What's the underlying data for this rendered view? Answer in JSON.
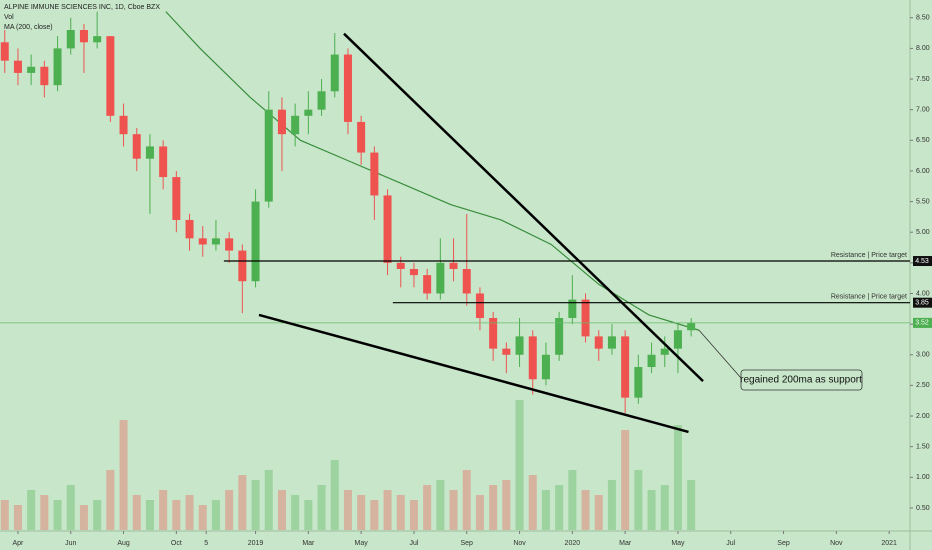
{
  "chart_data": {
    "type": "candlestick",
    "title": "ALPINE IMMUNE SCIENCES INC, 1D, Cboe BZX",
    "legend_items": [
      "Vol",
      "MA (200, close)"
    ],
    "x": [
      -0.5,
      0,
      0.5,
      1,
      1.5,
      2,
      2.5,
      3,
      3.5,
      4,
      4.5,
      5,
      5.5,
      6,
      6.5,
      7,
      7.5,
      8,
      8.5,
      9,
      9.5,
      10,
      10.5,
      11,
      11.5,
      12,
      12.5,
      13,
      13.5,
      14,
      14.5,
      15,
      15.5,
      16,
      16.5,
      17,
      17.5,
      18,
      18.5,
      19,
      19.5,
      20,
      20.5,
      21,
      21.5,
      22,
      22.5,
      23,
      23.5,
      24,
      24.5,
      25,
      25.5
    ],
    "open": [
      8.1,
      7.8,
      7.6,
      7.7,
      7.4,
      8.0,
      8.3,
      8.1,
      8.2,
      6.9,
      6.6,
      6.2,
      6.4,
      5.9,
      5.2,
      4.9,
      4.8,
      4.9,
      4.7,
      4.2,
      5.5,
      7.0,
      6.6,
      6.9,
      7.0,
      7.3,
      7.9,
      6.8,
      6.3,
      5.6,
      4.5,
      4.4,
      4.3,
      4.0,
      4.5,
      4.4,
      4.0,
      3.6,
      3.1,
      3.0,
      3.3,
      2.6,
      3.0,
      3.6,
      3.9,
      3.3,
      3.1,
      3.3,
      2.3,
      2.8,
      3.0,
      3.1,
      3.4
    ],
    "high": [
      8.3,
      8.0,
      7.9,
      7.8,
      8.2,
      8.5,
      8.4,
      8.6,
      8.2,
      7.1,
      6.7,
      6.6,
      6.5,
      6.0,
      5.3,
      5.1,
      5.2,
      5.0,
      4.8,
      5.7,
      7.3,
      7.2,
      7.1,
      7.3,
      7.5,
      8.25,
      8.0,
      6.9,
      6.4,
      5.7,
      4.6,
      4.5,
      4.4,
      4.9,
      4.9,
      5.3,
      4.1,
      3.7,
      3.2,
      3.6,
      3.4,
      3.2,
      3.7,
      4.3,
      4.0,
      3.4,
      3.5,
      3.4,
      3.0,
      3.2,
      3.3,
      3.5,
      3.6
    ],
    "low": [
      7.6,
      7.4,
      7.4,
      7.2,
      7.3,
      7.9,
      7.6,
      8.0,
      6.8,
      6.4,
      6.0,
      5.3,
      5.7,
      5.0,
      4.7,
      4.6,
      4.7,
      4.5,
      3.68,
      4.1,
      5.4,
      6.0,
      6.4,
      6.6,
      6.9,
      7.2,
      6.6,
      6.1,
      5.2,
      4.3,
      4.1,
      4.1,
      3.9,
      3.9,
      4.2,
      3.8,
      3.4,
      2.9,
      2.7,
      2.8,
      2.35,
      2.5,
      2.9,
      3.5,
      3.2,
      2.9,
      3.0,
      2.05,
      2.2,
      2.7,
      2.8,
      2.7,
      3.3
    ],
    "close": [
      7.8,
      7.6,
      7.7,
      7.4,
      8.0,
      8.3,
      8.1,
      8.2,
      6.9,
      6.6,
      6.2,
      6.4,
      5.9,
      5.2,
      4.9,
      4.8,
      4.9,
      4.7,
      4.2,
      5.5,
      7.0,
      6.6,
      6.9,
      7.0,
      7.3,
      7.9,
      6.8,
      6.3,
      5.6,
      4.5,
      4.4,
      4.3,
      4.0,
      4.5,
      4.4,
      4.0,
      3.6,
      3.1,
      3.0,
      3.3,
      2.6,
      3.0,
      3.6,
      3.9,
      3.3,
      3.1,
      3.3,
      2.3,
      2.8,
      3.0,
      3.1,
      3.4,
      3.52
    ],
    "volume": [
      30,
      25,
      40,
      35,
      30,
      45,
      25,
      30,
      60,
      110,
      35,
      30,
      40,
      30,
      35,
      25,
      30,
      40,
      55,
      50,
      60,
      40,
      35,
      30,
      45,
      70,
      40,
      35,
      30,
      40,
      35,
      30,
      45,
      50,
      40,
      60,
      35,
      45,
      50,
      130,
      55,
      40,
      45,
      60,
      40,
      35,
      50,
      100,
      60,
      40,
      45,
      105,
      50
    ],
    "up_color": "#4caf50",
    "down_color": "#ef5350",
    "ma": {
      "color": "#388e3c",
      "x": [
        5.6,
        6.9,
        8.8,
        10.7,
        12.6,
        14.5,
        16.4,
        18.3,
        20.2,
        22.0,
        23.9,
        25.8
      ],
      "values": [
        8.6,
        8.0,
        7.2,
        6.5,
        6.15,
        5.8,
        5.45,
        5.2,
        4.8,
        4.15,
        3.65,
        3.4
      ]
    },
    "levels": [
      {
        "value": 4.53,
        "label": "Resistance | Price target",
        "start": 7.8
      },
      {
        "value": 3.85,
        "label": "Resistance | Price target",
        "start": 14.2
      }
    ],
    "last_price": 3.52,
    "trendlines": [
      {
        "x": [
          12.35,
          25.95
        ],
        "y": [
          8.24,
          2.57
        ]
      },
      {
        "x": [
          9.13,
          25.4
        ],
        "y": [
          3.65,
          1.74
        ]
      }
    ],
    "callout": {
      "text": "regained 200ma as support",
      "x": 25.8,
      "y": 3.4
    },
    "xlim": [
      -0.68,
      33.79
    ],
    "ylim": [
      0.14,
      8.79
    ],
    "xticks": [
      {
        "value": 0,
        "label": "Apr"
      },
      {
        "value": 2,
        "label": "Jun"
      },
      {
        "value": 4,
        "label": "Aug"
      },
      {
        "value": 6,
        "label": "Oct"
      },
      {
        "value": 7.13,
        "label": "5"
      },
      {
        "value": 9,
        "label": "2019"
      },
      {
        "value": 11,
        "label": "Mar"
      },
      {
        "value": 13,
        "label": "May"
      },
      {
        "value": 15,
        "label": "Jul"
      },
      {
        "value": 17,
        "label": "Sep"
      },
      {
        "value": 19,
        "label": "Nov"
      },
      {
        "value": 21,
        "label": "2020"
      },
      {
        "value": 23,
        "label": "Mar"
      },
      {
        "value": 25,
        "label": "May"
      },
      {
        "value": 27,
        "label": "Jul"
      },
      {
        "value": 29,
        "label": "Sep"
      },
      {
        "value": 31,
        "label": "Nov"
      },
      {
        "value": 33,
        "label": "2021"
      }
    ],
    "yticks": [
      {
        "value": 0.5,
        "label": "0.50"
      },
      {
        "value": 1,
        "label": "1.00"
      },
      {
        "value": 1.5,
        "label": "1.50"
      },
      {
        "value": 2,
        "label": "2.00"
      },
      {
        "value": 2.5,
        "label": "2.50"
      },
      {
        "value": 3,
        "label": "3.00"
      },
      {
        "value": 3.5,
        "label": "3.50"
      },
      {
        "value": 4,
        "label": "4.00"
      },
      {
        "value": 4.5,
        "label": "4.50"
      },
      {
        "value": 5,
        "label": "5.00"
      },
      {
        "value": 5.5,
        "label": "5.50"
      },
      {
        "value": 6,
        "label": "6.00"
      },
      {
        "value": 6.5,
        "label": "6.50"
      },
      {
        "value": 7,
        "label": "7.00"
      },
      {
        "value": 7.5,
        "label": "7.50"
      },
      {
        "value": 8,
        "label": "8.00"
      },
      {
        "value": 8.5,
        "label": "8.50"
      }
    ]
  }
}
